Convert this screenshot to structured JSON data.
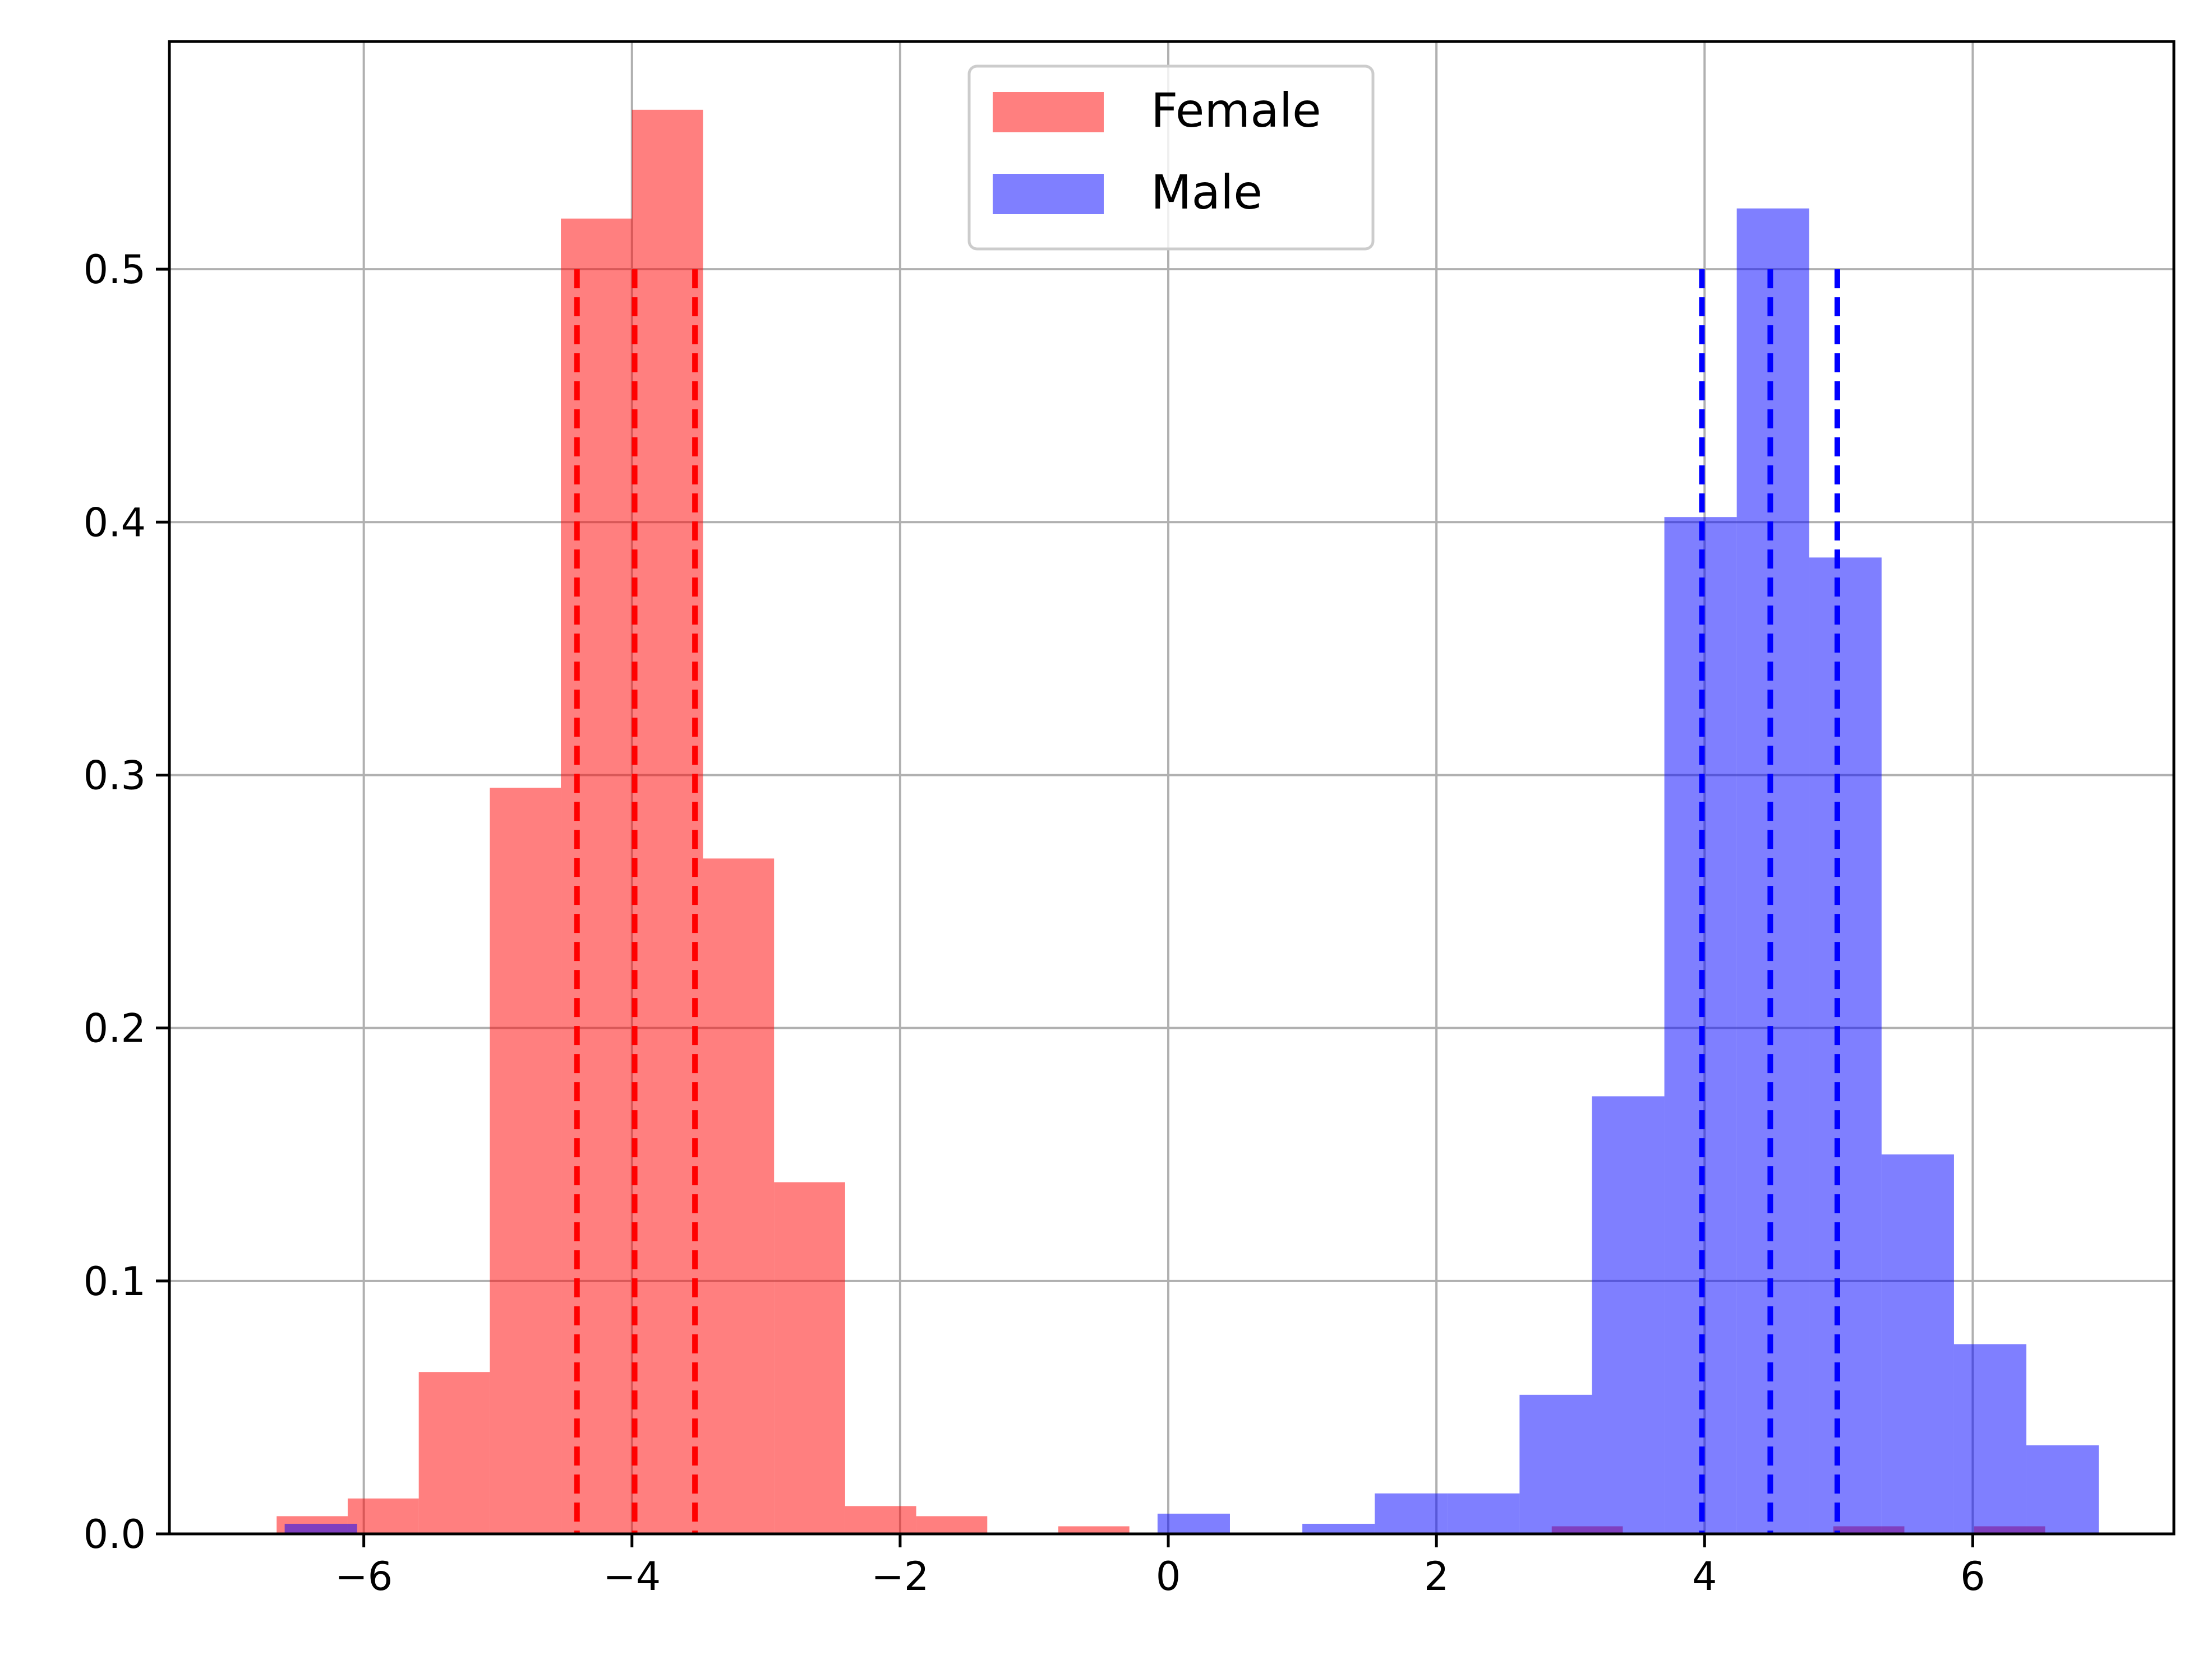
{
  "chart_data": {
    "type": "bar",
    "subtype": "overlaid-histogram",
    "title": "",
    "xlabel": "",
    "ylabel": "",
    "xlim": [
      -7.45,
      7.5
    ],
    "ylim": [
      0,
      0.59
    ],
    "grid": true,
    "legend_position": "upper-center",
    "xticks": [
      -6,
      -4,
      -2,
      0,
      2,
      4,
      6
    ],
    "xtick_labels": [
      "−6",
      "−4",
      "−2",
      "0",
      "2",
      "4",
      "6"
    ],
    "yticks": [
      0,
      0.1,
      0.2,
      0.3,
      0.4,
      0.5
    ],
    "ytick_labels": [
      "0.0",
      "0.1",
      "0.2",
      "0.3",
      "0.4",
      "0.5"
    ],
    "series": [
      {
        "name": "Female",
        "color": "#ff0000",
        "alpha": 0.5,
        "bins": [
          [
            -6.65,
            -6.12,
            0.007
          ],
          [
            -6.12,
            -5.59,
            0.014
          ],
          [
            -5.59,
            -5.06,
            0.064
          ],
          [
            -5.06,
            -4.53,
            0.295
          ],
          [
            -4.53,
            -4.0,
            0.52
          ],
          [
            -4.0,
            -3.47,
            0.563
          ],
          [
            -3.47,
            -2.94,
            0.267
          ],
          [
            -2.94,
            -2.41,
            0.139
          ],
          [
            -2.41,
            -1.88,
            0.011
          ],
          [
            -1.88,
            -1.35,
            0.007
          ],
          [
            -0.82,
            -0.29,
            0.003
          ],
          [
            2.86,
            3.39,
            0.003
          ],
          [
            4.96,
            5.49,
            0.003
          ],
          [
            6.01,
            6.54,
            0.003
          ]
        ],
        "vlines": [
          -4.41,
          -3.98,
          -3.53
        ],
        "vline_ymax": 0.5
      },
      {
        "name": "Male",
        "color": "#0000ff",
        "alpha": 0.5,
        "bins": [
          [
            -6.59,
            -6.05,
            0.004
          ],
          [
            -0.08,
            0.46,
            0.008
          ],
          [
            1.0,
            1.54,
            0.004
          ],
          [
            1.54,
            2.08,
            0.016
          ],
          [
            2.08,
            2.62,
            0.016
          ],
          [
            2.62,
            3.16,
            0.055
          ],
          [
            3.16,
            3.7,
            0.173
          ],
          [
            3.7,
            4.24,
            0.402
          ],
          [
            4.24,
            4.78,
            0.524
          ],
          [
            4.78,
            5.32,
            0.386
          ],
          [
            5.32,
            5.86,
            0.15
          ],
          [
            5.86,
            6.4,
            0.075
          ],
          [
            6.4,
            6.94,
            0.035
          ]
        ],
        "vlines": [
          3.98,
          4.49,
          4.99
        ],
        "vline_ymax": 0.5
      }
    ]
  }
}
